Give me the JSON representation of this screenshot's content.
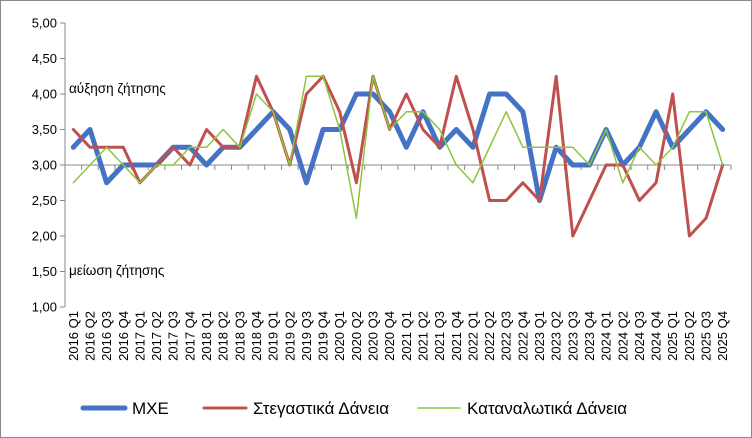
{
  "chart_data": {
    "type": "line",
    "categories": [
      "2016 Q1",
      "2016 Q2",
      "2016 Q3",
      "2016 Q4",
      "2017 Q1",
      "2017 Q2",
      "2017 Q3",
      "2017 Q4",
      "2018 Q1",
      "2018 Q2",
      "2018 Q3",
      "2018 Q4",
      "2019 Q1",
      "2019 Q2",
      "2019 Q3",
      "2019 Q4",
      "2020 Q1",
      "2020 Q2",
      "2020 Q3",
      "2020 Q4",
      "2021 Q1",
      "2021 Q2",
      "2021 Q3",
      "2021 Q4",
      "2022 Q1",
      "2022 Q2",
      "2022 Q3",
      "2022 Q4",
      "2023 Q1",
      "2023 Q2",
      "2023 Q3",
      "2023 Q4",
      "2024 Q1",
      "2024 Q2",
      "2024 Q3",
      "2024 Q4",
      "2025 Q1",
      "2025 Q2",
      "2025 Q3",
      "2025 Q4"
    ],
    "series": [
      {
        "name": "ΜΧΕ",
        "color": "#4472C4",
        "values": [
          3.25,
          3.5,
          2.75,
          3.0,
          3.0,
          3.0,
          3.25,
          3.25,
          3.0,
          3.25,
          3.25,
          3.5,
          3.75,
          3.5,
          2.75,
          3.5,
          3.5,
          4.0,
          4.0,
          3.75,
          3.25,
          3.75,
          3.25,
          3.5,
          3.25,
          4.0,
          4.0,
          3.75,
          2.5,
          3.25,
          3.0,
          3.0,
          3.5,
          3.0,
          3.25,
          3.75,
          3.25,
          3.5,
          3.75,
          3.5
        ]
      },
      {
        "name": "Στεγαστικά Δάνεια",
        "color": "#C0504D",
        "values": [
          3.5,
          3.25,
          3.25,
          3.25,
          2.75,
          3.0,
          3.25,
          3.0,
          3.5,
          3.25,
          3.25,
          4.25,
          3.75,
          3.0,
          4.0,
          4.25,
          3.75,
          2.75,
          4.25,
          3.5,
          4.0,
          3.5,
          3.25,
          4.25,
          3.5,
          2.5,
          2.5,
          2.75,
          2.5,
          4.25,
          2.0,
          2.5,
          3.0,
          3.0,
          2.5,
          2.75,
          4.0,
          2.0,
          2.25,
          3.0
        ]
      },
      {
        "name": "Καταναλωτικά Δάνεια",
        "color": "#8CC63F",
        "values": [
          2.75,
          3.0,
          3.25,
          3.0,
          2.75,
          3.0,
          3.0,
          3.25,
          3.25,
          3.5,
          3.25,
          4.0,
          3.75,
          3.0,
          4.25,
          4.25,
          3.5,
          2.25,
          4.25,
          3.5,
          3.75,
          3.75,
          3.5,
          3.0,
          2.75,
          3.25,
          3.75,
          3.25,
          3.25,
          3.25,
          3.25,
          3.0,
          3.5,
          2.75,
          3.25,
          3.0,
          3.25,
          3.75,
          3.75,
          3.0
        ]
      }
    ],
    "y_ticks": [
      "1,00",
      "1,50",
      "2,00",
      "2,50",
      "3,00",
      "3,50",
      "4,00",
      "4,50",
      "5,00"
    ],
    "ylim": [
      1.0,
      5.0
    ],
    "grid": false,
    "legend": "bottom",
    "annotations": {
      "upper": "αύξηση ζήτησης",
      "lower": "μείωση ζήτησης"
    }
  }
}
